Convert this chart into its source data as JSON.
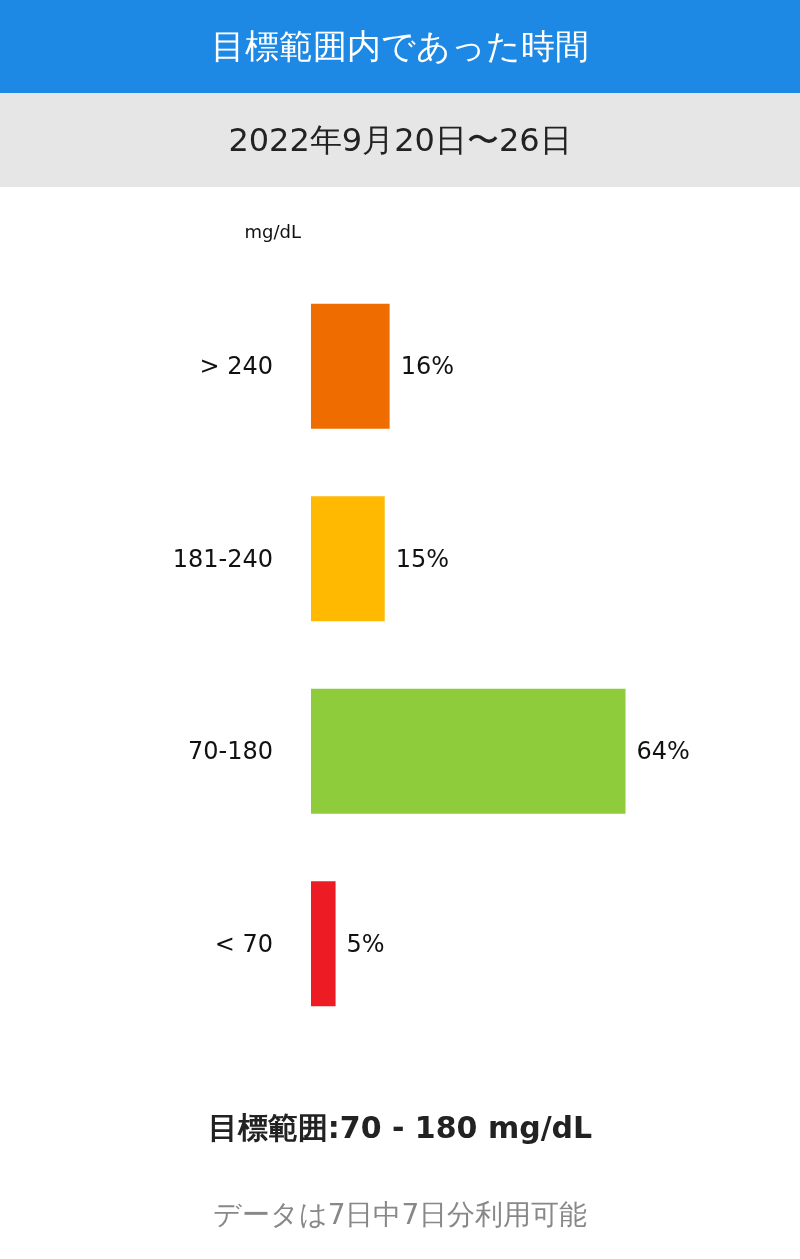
{
  "chart_data": {
    "type": "bar",
    "orientation": "horizontal",
    "title": "目標範囲内であった時間",
    "subtitle": "2022年9月20日〜26日",
    "ylabel": "mg/dL",
    "categories": [
      "> 240",
      "181-240",
      "70-180",
      "< 70"
    ],
    "values": [
      16,
      15,
      64,
      5
    ],
    "colors": [
      "#ef6c00",
      "#ffb900",
      "#8fcc3c",
      "#ed1c24"
    ],
    "value_labels": [
      "16%",
      "15%",
      "64%",
      "5%"
    ],
    "tick_labels": "y",
    "grid": false,
    "annotations": [
      "目標範囲:70 - 180 mg/dL",
      "データは7日中7日分利用可能"
    ]
  }
}
